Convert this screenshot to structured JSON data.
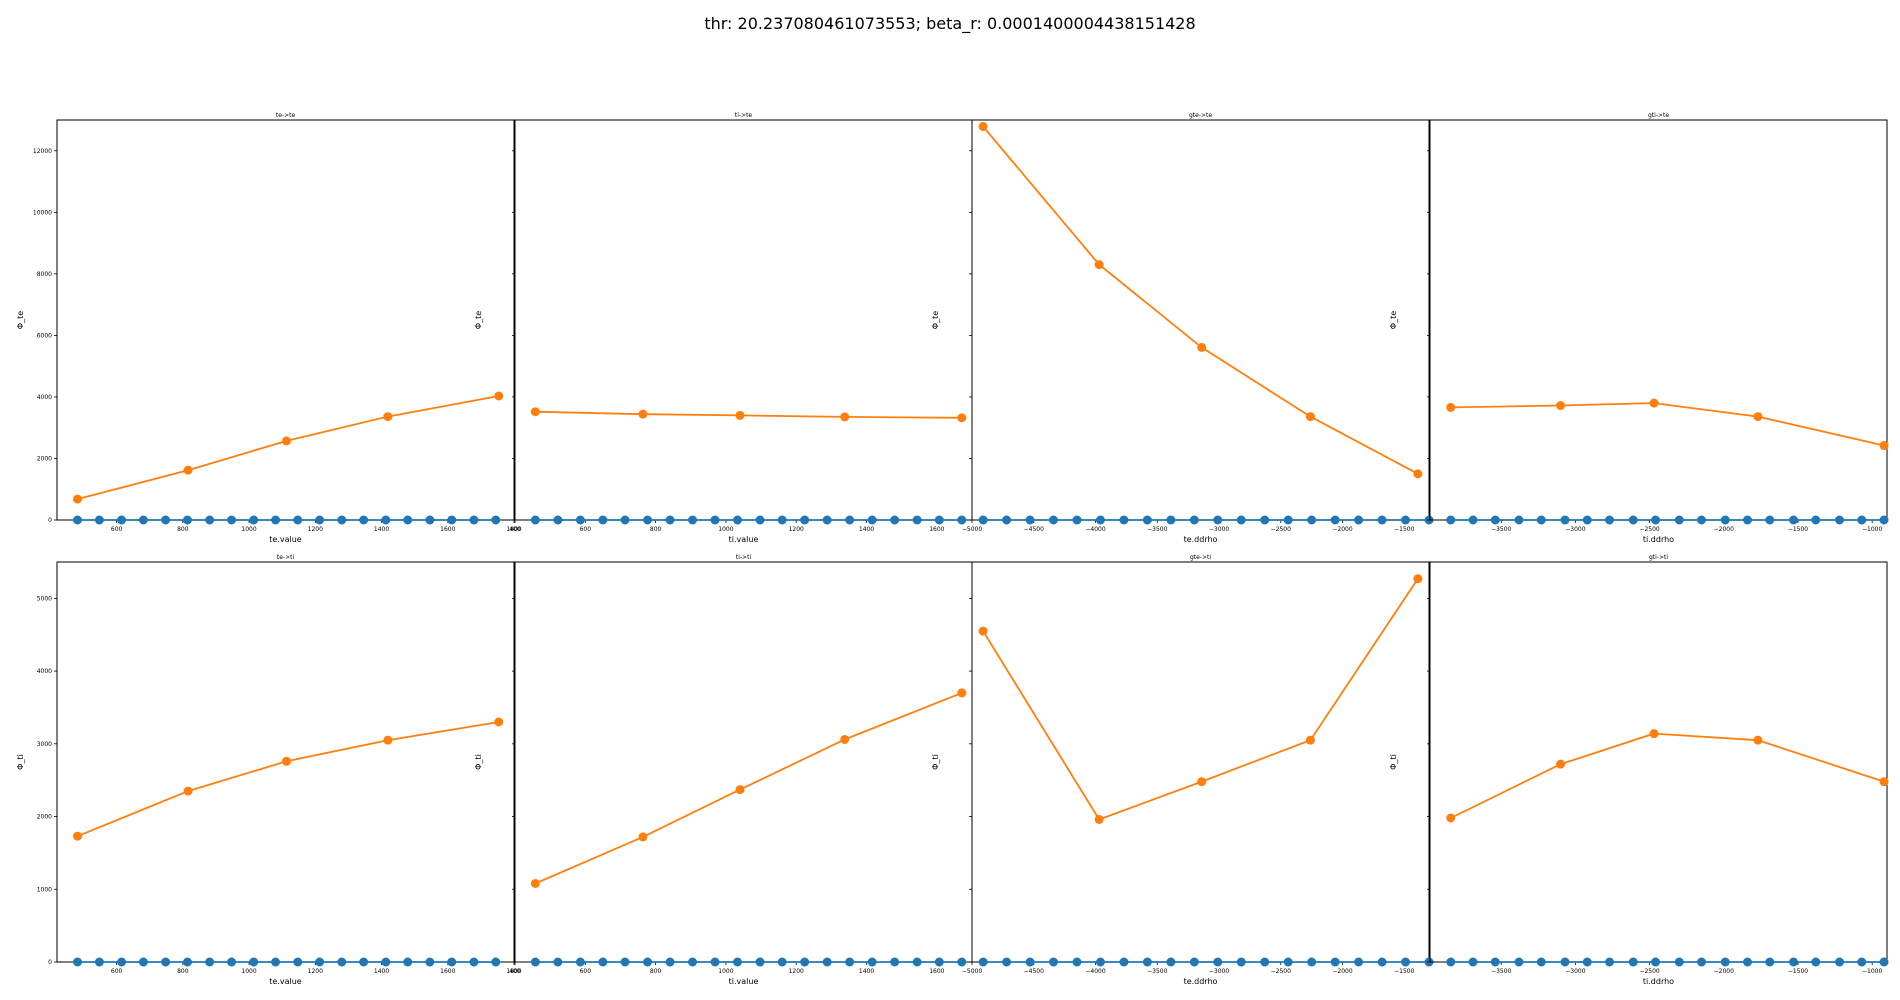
{
  "suptitle": "thr: 20.237080461073553; beta_r: 0.0001400004438151428",
  "colors": {
    "baseline": "#1f77b4",
    "series": "#ff7f0e",
    "axes": "#000000"
  },
  "chart_data": [
    {
      "type": "line",
      "title": "te->te",
      "xlabel": "te.value",
      "ylabel": "Φ_te",
      "xlim": [
        420,
        1800
      ],
      "ylim": [
        0,
        13000
      ],
      "xticks": [
        600,
        800,
        1000,
        1200,
        1400,
        1600,
        1800
      ],
      "xtick_labels": [
        "600",
        "800",
        "1000",
        "1200",
        "1400",
        "1600",
        "1800"
      ],
      "yticks": [
        0,
        2000,
        4000,
        6000,
        8000,
        10000,
        12000
      ],
      "ytick_labels": [
        "0",
        "2000",
        "4000",
        "6000",
        "8000",
        "10000",
        "12000"
      ],
      "series": [
        {
          "x": [
            482,
            548,
            615,
            681,
            748,
            814,
            881,
            947,
            1014,
            1080,
            1147,
            1213,
            1280,
            1346,
            1413,
            1479,
            1546,
            1612,
            1679,
            1745
          ],
          "y": [
            0,
            0,
            0,
            0,
            0,
            0,
            0,
            0,
            0,
            0,
            0,
            0,
            0,
            0,
            0,
            0,
            0,
            0,
            0,
            0
          ]
        },
        {
          "x": [
            482,
            816,
            1113,
            1419,
            1754
          ],
          "y": [
            680,
            1620,
            2570,
            3360,
            4030
          ]
        }
      ]
    },
    {
      "type": "line",
      "title": "ti->te",
      "xlabel": "ti.value",
      "ylabel": "Φ_te",
      "xlim": [
        400,
        1700
      ],
      "ylim": [
        0,
        13000
      ],
      "xticks": [
        400,
        600,
        800,
        1000,
        1200,
        1400,
        1600
      ],
      "xtick_labels": [
        "400",
        "600",
        "800",
        "1000",
        "1200",
        "1400",
        "1600"
      ],
      "yticks": [
        0,
        2000,
        4000,
        6000,
        8000,
        10000,
        12000
      ],
      "ytick_labels": [],
      "series": [
        {
          "x": [
            458,
            522,
            586,
            650,
            713,
            777,
            841,
            905,
            969,
            1033,
            1097,
            1160,
            1224,
            1288,
            1352,
            1416,
            1480,
            1544,
            1607,
            1671
          ],
          "y": [
            0,
            0,
            0,
            0,
            0,
            0,
            0,
            0,
            0,
            0,
            0,
            0,
            0,
            0,
            0,
            0,
            0,
            0,
            0,
            0
          ]
        },
        {
          "x": [
            458,
            764,
            1040,
            1338,
            1671
          ],
          "y": [
            3520,
            3440,
            3400,
            3350,
            3320
          ]
        }
      ]
    },
    {
      "type": "line",
      "title": "gte->te",
      "xlabel": "te.ddrho",
      "ylabel": "Φ_te",
      "xlim": [
        -5000,
        -1300
      ],
      "ylim": [
        0,
        13000
      ],
      "xticks": [
        -5000,
        -4500,
        -4000,
        -3500,
        -3000,
        -2500,
        -2000,
        -1500
      ],
      "xtick_labels": [
        "−5000",
        "−4500",
        "−4000",
        "−3500",
        "−3000",
        "−2500",
        "−2000",
        "−1500"
      ],
      "yticks": [
        0,
        2000,
        4000,
        6000,
        8000,
        10000,
        12000
      ],
      "ytick_labels": [],
      "series": [
        {
          "x": [
            -4910,
            -4720,
            -4530,
            -4340,
            -4150,
            -3960,
            -3770,
            -3580,
            -3390,
            -3200,
            -3010,
            -2820,
            -2630,
            -2440,
            -2250,
            -2060,
            -1870,
            -1680,
            -1490,
            -1300
          ],
          "y": [
            0,
            0,
            0,
            0,
            0,
            0,
            0,
            0,
            0,
            0,
            0,
            0,
            0,
            0,
            0,
            0,
            0,
            0,
            0,
            0
          ]
        },
        {
          "x": [
            -4910,
            -3970,
            -3140,
            -2260,
            -1390
          ],
          "y": [
            12790,
            8300,
            5610,
            3360,
            1500
          ]
        }
      ]
    },
    {
      "type": "line",
      "title": "gti->te",
      "xlabel": "ti.ddrho",
      "ylabel": "Φ_te",
      "xlim": [
        -3980,
        -900
      ],
      "ylim": [
        0,
        13000
      ],
      "xticks": [
        -3500,
        -3000,
        -2500,
        -2000,
        -1500,
        -1000
      ],
      "xtick_labels": [
        "−3500",
        "−3000",
        "−2500",
        "−2000",
        "−1500",
        "−1000"
      ],
      "yticks": [
        0,
        2000,
        4000,
        6000,
        8000,
        10000,
        12000
      ],
      "ytick_labels": [],
      "series": [
        {
          "x": [
            -3840,
            -3690,
            -3540,
            -3380,
            -3230,
            -3070,
            -2920,
            -2770,
            -2610,
            -2460,
            -2300,
            -2150,
            -1990,
            -1840,
            -1690,
            -1530,
            -1380,
            -1220,
            -1070,
            -920
          ],
          "y": [
            0,
            0,
            0,
            0,
            0,
            0,
            0,
            0,
            0,
            0,
            0,
            0,
            0,
            0,
            0,
            0,
            0,
            0,
            0,
            0
          ]
        },
        {
          "x": [
            -3840,
            -3100,
            -2470,
            -1770,
            -920
          ],
          "y": [
            3660,
            3720,
            3800,
            3360,
            2420
          ]
        }
      ]
    },
    {
      "type": "line",
      "title": "te->ti",
      "xlabel": "te.value",
      "ylabel": "Φ_ti",
      "xlim": [
        420,
        1800
      ],
      "ylim": [
        0,
        5500
      ],
      "xticks": [
        600,
        800,
        1000,
        1200,
        1400,
        1600,
        1800
      ],
      "xtick_labels": [
        "600",
        "800",
        "1000",
        "1200",
        "1400",
        "1600",
        "1800"
      ],
      "yticks": [
        0,
        1000,
        2000,
        3000,
        4000,
        5000
      ],
      "ytick_labels": [
        "0",
        "1000",
        "2000",
        "3000",
        "4000",
        "5000"
      ],
      "series": [
        {
          "x": [
            482,
            548,
            615,
            681,
            748,
            814,
            881,
            947,
            1014,
            1080,
            1147,
            1213,
            1280,
            1346,
            1413,
            1479,
            1546,
            1612,
            1679,
            1745
          ],
          "y": [
            0,
            0,
            0,
            0,
            0,
            0,
            0,
            0,
            0,
            0,
            0,
            0,
            0,
            0,
            0,
            0,
            0,
            0,
            0,
            0
          ]
        },
        {
          "x": [
            482,
            816,
            1113,
            1419,
            1754
          ],
          "y": [
            1730,
            2350,
            2760,
            3050,
            3300
          ]
        }
      ]
    },
    {
      "type": "line",
      "title": "ti->ti",
      "xlabel": "ti.value",
      "ylabel": "Φ_ti",
      "xlim": [
        400,
        1700
      ],
      "ylim": [
        0,
        5500
      ],
      "xticks": [
        400,
        600,
        800,
        1000,
        1200,
        1400,
        1600
      ],
      "xtick_labels": [
        "400",
        "600",
        "800",
        "1000",
        "1200",
        "1400",
        "1600"
      ],
      "yticks": [
        0,
        1000,
        2000,
        3000,
        4000,
        5000
      ],
      "ytick_labels": [],
      "series": [
        {
          "x": [
            458,
            522,
            586,
            650,
            713,
            777,
            841,
            905,
            969,
            1033,
            1097,
            1160,
            1224,
            1288,
            1352,
            1416,
            1480,
            1544,
            1607,
            1671
          ],
          "y": [
            0,
            0,
            0,
            0,
            0,
            0,
            0,
            0,
            0,
            0,
            0,
            0,
            0,
            0,
            0,
            0,
            0,
            0,
            0,
            0
          ]
        },
        {
          "x": [
            458,
            764,
            1040,
            1338,
            1671
          ],
          "y": [
            1080,
            1720,
            2370,
            3060,
            3700
          ]
        }
      ]
    },
    {
      "type": "line",
      "title": "gte->ti",
      "xlabel": "te.ddrho",
      "ylabel": "Φ_ti",
      "xlim": [
        -5000,
        -1300
      ],
      "ylim": [
        0,
        5500
      ],
      "xticks": [
        -5000,
        -4500,
        -4000,
        -3500,
        -3000,
        -2500,
        -2000,
        -1500
      ],
      "xtick_labels": [
        "−5000",
        "−4500",
        "−4000",
        "−3500",
        "−3000",
        "−2500",
        "−2000",
        "−1500"
      ],
      "yticks": [
        0,
        1000,
        2000,
        3000,
        4000,
        5000
      ],
      "ytick_labels": [],
      "series": [
        {
          "x": [
            -4910,
            -4720,
            -4530,
            -4340,
            -4150,
            -3960,
            -3770,
            -3580,
            -3390,
            -3200,
            -3010,
            -2820,
            -2630,
            -2440,
            -2250,
            -2060,
            -1870,
            -1680,
            -1490,
            -1300
          ],
          "y": [
            0,
            0,
            0,
            0,
            0,
            0,
            0,
            0,
            0,
            0,
            0,
            0,
            0,
            0,
            0,
            0,
            0,
            0,
            0,
            0
          ]
        },
        {
          "x": [
            -4910,
            -3970,
            -3140,
            -2260,
            -1390
          ],
          "y": [
            4550,
            1960,
            2480,
            3050,
            5270
          ]
        }
      ]
    },
    {
      "type": "line",
      "title": "gti->ti",
      "xlabel": "ti.ddrho",
      "ylabel": "Φ_ti",
      "xlim": [
        -3980,
        -900
      ],
      "ylim": [
        0,
        5500
      ],
      "xticks": [
        -3500,
        -3000,
        -2500,
        -2000,
        -1500,
        -1000
      ],
      "xtick_labels": [
        "−3500",
        "−3000",
        "−2500",
        "−2000",
        "−1500",
        "−1000"
      ],
      "yticks": [
        0,
        1000,
        2000,
        3000,
        4000,
        5000
      ],
      "ytick_labels": [],
      "series": [
        {
          "x": [
            -3840,
            -3690,
            -3540,
            -3380,
            -3230,
            -3070,
            -2920,
            -2770,
            -2610,
            -2460,
            -2300,
            -2150,
            -1990,
            -1840,
            -1690,
            -1530,
            -1380,
            -1220,
            -1070,
            -920
          ],
          "y": [
            0,
            0,
            0,
            0,
            0,
            0,
            0,
            0,
            0,
            0,
            0,
            0,
            0,
            0,
            0,
            0,
            0,
            0,
            0,
            0
          ]
        },
        {
          "x": [
            -3840,
            -3100,
            -2470,
            -1770,
            -920
          ],
          "y": [
            1980,
            2720,
            3140,
            3050,
            2480
          ]
        }
      ]
    }
  ]
}
